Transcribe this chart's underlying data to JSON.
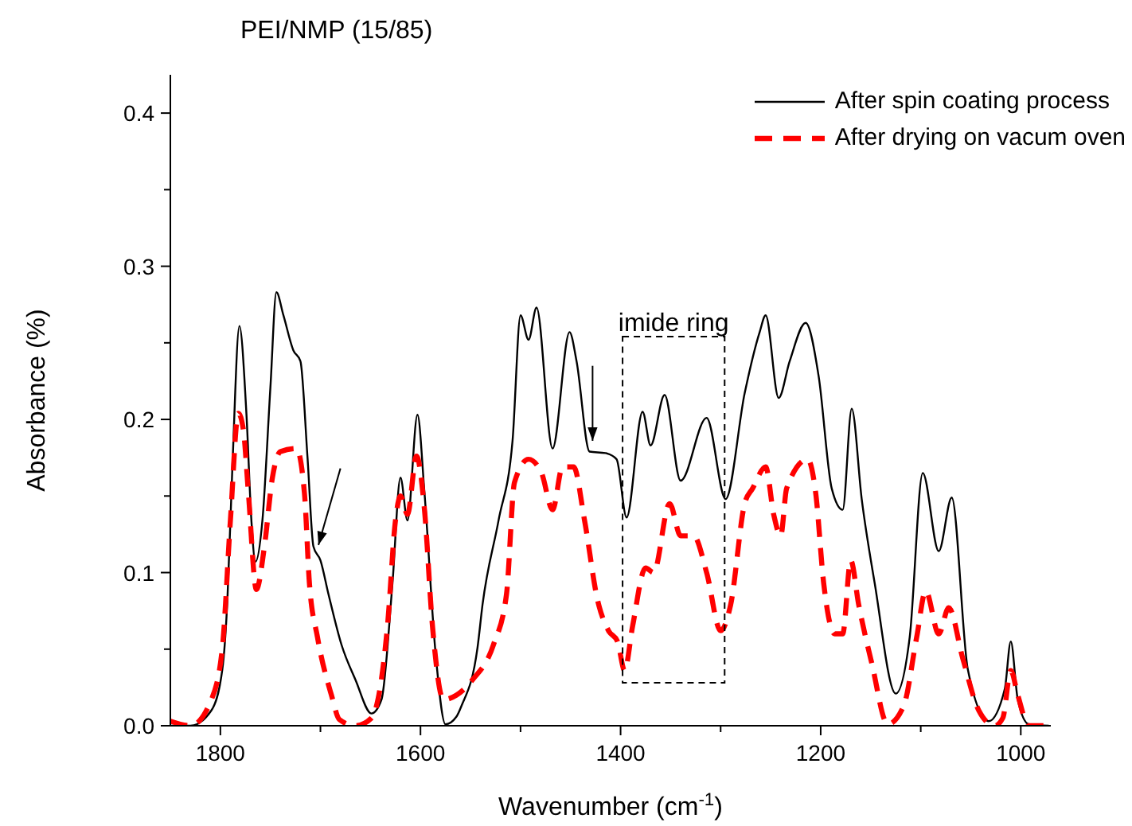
{
  "chart_data": {
    "type": "line",
    "title": "PEI/NMP (15/85)",
    "xlabel": "Wavenumber (cm$^{-1}$)",
    "ylabel": "Absorbance (%)",
    "annotations": [
      "imide ring"
    ],
    "xlim": [
      1850,
      970
    ],
    "xticks": [
      1800,
      {
        "value": 1700,
        "label": null
      },
      1600,
      {
        "value": 1500,
        "label": null
      },
      1400,
      {
        "value": 1300,
        "label": null
      },
      1200,
      {
        "value": 1100,
        "label": null
      },
      1000
    ],
    "ylim": [
      0,
      0.425
    ],
    "yticks": [
      {
        "value": 0,
        "label": "0.0"
      },
      {
        "value": 0.05,
        "label": null
      },
      0.1,
      {
        "value": 0.15,
        "label": null
      },
      0.2,
      {
        "value": 0.25,
        "label": null
      },
      0.3,
      {
        "value": 0.35,
        "label": null
      },
      0.4
    ],
    "legend": "top right",
    "marker": "none",
    "series": [
      {
        "name": "After spin coating process",
        "color": "#000000",
        "line_style": "solid",
        "x": [
          1850,
          1830,
          1809,
          1798,
          1793,
          1788,
          1781,
          1774,
          1769,
          1765,
          1758,
          1750,
          1744,
          1737,
          1727,
          1720,
          1713,
          1707,
          1700,
          1692,
          1679,
          1665,
          1649,
          1639,
          1628,
          1620,
          1613,
          1603,
          1596,
          1585,
          1575,
          1564,
          1559,
          1543,
          1538,
          1522,
          1508,
          1500,
          1492,
          1484,
          1468,
          1451,
          1444,
          1431,
          1415,
          1404,
          1394,
          1378,
          1370,
          1356,
          1340,
          1314,
          1295,
          1276,
          1261,
          1255,
          1242,
          1231,
          1215,
          1202,
          1189,
          1178,
          1169,
          1159,
          1146,
          1125,
          1111,
          1098,
          1082,
          1069,
          1053,
          1032,
          1016,
          1010,
          1003,
          992,
          972
        ],
        "values": [
          0,
          0,
          0.01,
          0.037,
          0.082,
          0.169,
          0.261,
          0.204,
          0.134,
          0.107,
          0.134,
          0.221,
          0.283,
          0.268,
          0.245,
          0.238,
          0.176,
          0.117,
          0.108,
          0.086,
          0.053,
          0.03,
          0.008,
          0.017,
          0.093,
          0.162,
          0.134,
          0.203,
          0.152,
          0.048,
          0.001,
          0.006,
          0.013,
          0.051,
          0.079,
          0.134,
          0.186,
          0.268,
          0.252,
          0.273,
          0.181,
          0.257,
          0.238,
          0.179,
          0.178,
          0.174,
          0.136,
          0.205,
          0.183,
          0.216,
          0.16,
          0.201,
          0.148,
          0.217,
          0.257,
          0.268,
          0.214,
          0.238,
          0.263,
          0.228,
          0.155,
          0.141,
          0.207,
          0.148,
          0.093,
          0.021,
          0.058,
          0.165,
          0.114,
          0.149,
          0.037,
          0.003,
          0.024,
          0.055,
          0.017,
          0.001,
          0
        ]
      },
      {
        "name": "After drying on vacum oven",
        "color": "#ff0000",
        "line_style": "dashed",
        "x": [
          1850,
          1830,
          1809,
          1798,
          1790,
          1782,
          1777,
          1772,
          1764,
          1756,
          1748,
          1740,
          1724,
          1716,
          1711,
          1703,
          1689,
          1681,
          1665,
          1649,
          1633,
          1625,
          1620,
          1613,
          1604,
          1596,
          1588,
          1577,
          1564,
          1548,
          1527,
          1514,
          1506,
          1492,
          1479,
          1468,
          1458,
          1447,
          1436,
          1423,
          1412,
          1403,
          1396,
          1388,
          1375,
          1367,
          1351,
          1340,
          1327,
          1314,
          1300,
          1290,
          1276,
          1268,
          1255,
          1247,
          1240,
          1234,
          1213,
          1205,
          1197,
          1186,
          1178,
          1170,
          1162,
          1149,
          1133,
          1117,
          1104,
          1095,
          1082,
          1072,
          1058,
          1042,
          1026,
          1018,
          1010,
          1003,
          992,
          972
        ],
        "values": [
          0.003,
          0,
          0.017,
          0.051,
          0.134,
          0.204,
          0.193,
          0.152,
          0.089,
          0.117,
          0.162,
          0.179,
          0.181,
          0.152,
          0.093,
          0.058,
          0.02,
          0.004,
          0,
          0.005,
          0.065,
          0.134,
          0.15,
          0.138,
          0.176,
          0.141,
          0.065,
          0.017,
          0.02,
          0.03,
          0.053,
          0.086,
          0.159,
          0.174,
          0.165,
          0.141,
          0.169,
          0.169,
          0.134,
          0.082,
          0.062,
          0.055,
          0.036,
          0.065,
          0.103,
          0.1,
          0.145,
          0.124,
          0.124,
          0.1,
          0.062,
          0.079,
          0.145,
          0.155,
          0.169,
          0.138,
          0.124,
          0.155,
          0.174,
          0.152,
          0.093,
          0.06,
          0.06,
          0.108,
          0.079,
          0.041,
          0.001,
          0.013,
          0.058,
          0.088,
          0.06,
          0.077,
          0.044,
          0.01,
          0,
          0.005,
          0.036,
          0.02,
          0,
          0
        ]
      }
    ]
  }
}
